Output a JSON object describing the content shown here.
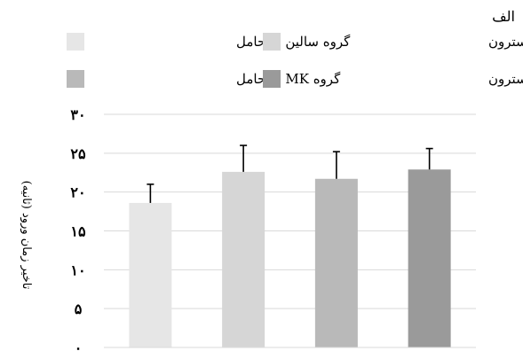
{
  "panel_label": "الف",
  "chart_data": {
    "type": "bar",
    "categories": [
      "گروه سالین + حامل",
      "گروه سالین + کورتیکوسترون",
      "گروه MK + حامل",
      "گروه MK + کورتیکوسترون"
    ],
    "values": [
      18.6,
      22.6,
      21.7,
      22.9
    ],
    "errors": [
      2.4,
      3.4,
      3.5,
      2.7
    ],
    "colors": [
      "#e6e6e6",
      "#d6d6d6",
      "#b9b9b9",
      "#9a9a9a"
    ],
    "ylabel": "تاخیر زمان ورود (ثانیه)",
    "ylim": [
      0,
      30
    ],
    "yticks": [
      0,
      5,
      10,
      15,
      20,
      25,
      30
    ],
    "ytick_labels": [
      "۰",
      "۵",
      "۱۰",
      "۱۵",
      "۲۰",
      "۲۵",
      "۳۰"
    ],
    "grid": true,
    "legend_position": "top"
  }
}
